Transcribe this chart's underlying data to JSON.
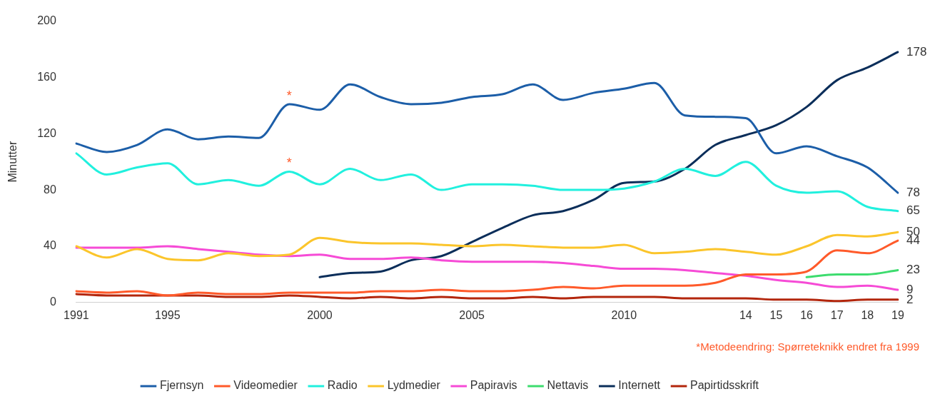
{
  "chart_data": {
    "type": "line",
    "ylabel": "Minutter",
    "ylim": [
      0,
      200
    ],
    "yticks": [
      0,
      40,
      80,
      120,
      160,
      200
    ],
    "grid": false,
    "legend": "bottom",
    "marker": "none",
    "line_style": "solid",
    "categories": [
      "1991",
      null,
      null,
      "1995",
      null,
      null,
      null,
      null,
      "2000",
      null,
      null,
      null,
      null,
      "2005",
      null,
      null,
      null,
      null,
      "2010",
      null,
      null,
      null,
      "14",
      "15",
      "16",
      "17",
      "18",
      "19"
    ],
    "annotations": [
      "*Metodeendring: Spørreteknikk endret fra 1999"
    ],
    "series": [
      {
        "name": "Fjernsyn",
        "color": "#1c5ea8",
        "values": [
          113,
          107,
          112,
          123,
          116,
          118,
          117,
          141,
          137,
          155,
          146,
          141,
          142,
          146,
          148,
          155,
          144,
          149,
          152,
          156,
          133,
          132,
          131,
          106,
          111,
          104,
          96,
          78
        ],
        "value_labels": [
          null,
          null,
          null,
          null,
          null,
          null,
          null,
          "*",
          null,
          null,
          null,
          null,
          null,
          null,
          null,
          null,
          null,
          null,
          null,
          null,
          null,
          null,
          null,
          null,
          null,
          null,
          null,
          "78"
        ]
      },
      {
        "name": "Videomedier",
        "color": "#ff5a2a",
        "values": [
          8,
          7,
          8,
          5,
          7,
          6,
          6,
          7,
          7,
          7,
          8,
          8,
          9,
          8,
          8,
          9,
          11,
          10,
          12,
          12,
          12,
          14,
          20,
          20,
          22,
          37,
          35,
          44
        ],
        "value_labels": [
          null,
          null,
          null,
          null,
          null,
          null,
          null,
          null,
          null,
          null,
          null,
          null,
          null,
          null,
          null,
          null,
          null,
          null,
          null,
          null,
          null,
          null,
          null,
          null,
          null,
          null,
          null,
          "44"
        ]
      },
      {
        "name": "Radio",
        "color": "#21f0de",
        "values": [
          106,
          91,
          96,
          99,
          84,
          87,
          83,
          93,
          84,
          95,
          87,
          91,
          80,
          84,
          84,
          83,
          80,
          80,
          81,
          86,
          95,
          90,
          100,
          83,
          78,
          79,
          68,
          65
        ],
        "value_labels": [
          null,
          null,
          null,
          null,
          null,
          null,
          null,
          "*",
          null,
          null,
          null,
          null,
          null,
          null,
          null,
          null,
          null,
          null,
          null,
          null,
          null,
          null,
          null,
          null,
          null,
          null,
          null,
          "65"
        ]
      },
      {
        "name": "Lydmedier",
        "color": "#fbc52b",
        "values": [
          40,
          32,
          38,
          31,
          30,
          35,
          33,
          34,
          46,
          43,
          42,
          42,
          41,
          40,
          41,
          40,
          39,
          39,
          41,
          35,
          36,
          38,
          36,
          34,
          40,
          48,
          47,
          50
        ],
        "value_labels": [
          null,
          null,
          null,
          null,
          null,
          null,
          null,
          null,
          null,
          null,
          null,
          null,
          null,
          null,
          null,
          null,
          null,
          null,
          null,
          null,
          null,
          null,
          null,
          null,
          null,
          null,
          null,
          "50"
        ]
      },
      {
        "name": "Papiravis",
        "color": "#f64bd6",
        "values": [
          39,
          39,
          39,
          40,
          38,
          36,
          34,
          33,
          34,
          31,
          31,
          32,
          30,
          29,
          29,
          29,
          28,
          26,
          24,
          24,
          23,
          21,
          19,
          16,
          14,
          11,
          12,
          9
        ],
        "value_labels": [
          null,
          null,
          null,
          null,
          null,
          null,
          null,
          null,
          null,
          null,
          null,
          null,
          null,
          null,
          null,
          null,
          null,
          null,
          null,
          null,
          null,
          null,
          null,
          null,
          null,
          null,
          null,
          "9"
        ]
      },
      {
        "name": "Nettavis",
        "color": "#3ddc6e",
        "values": [
          null,
          null,
          null,
          null,
          null,
          null,
          null,
          null,
          null,
          null,
          null,
          null,
          null,
          null,
          null,
          null,
          null,
          null,
          null,
          null,
          null,
          null,
          null,
          null,
          18,
          20,
          20,
          23
        ],
        "value_labels": [
          null,
          null,
          null,
          null,
          null,
          null,
          null,
          null,
          null,
          null,
          null,
          null,
          null,
          null,
          null,
          null,
          null,
          null,
          null,
          null,
          null,
          null,
          null,
          null,
          null,
          null,
          null,
          "23"
        ]
      },
      {
        "name": "Internett",
        "color": "#0b2e5a",
        "values": [
          null,
          null,
          null,
          null,
          null,
          null,
          null,
          null,
          18,
          21,
          22,
          30,
          33,
          43,
          53,
          62,
          65,
          73,
          85,
          86,
          95,
          112,
          119,
          126,
          139,
          158,
          167,
          178
        ],
        "value_labels": [
          null,
          null,
          null,
          null,
          null,
          null,
          null,
          null,
          null,
          null,
          null,
          null,
          null,
          null,
          null,
          null,
          null,
          null,
          null,
          null,
          null,
          null,
          null,
          null,
          null,
          null,
          null,
          "178"
        ]
      },
      {
        "name": "Papirtidsskrift",
        "color": "#b3260c",
        "values": [
          6,
          5,
          5,
          5,
          5,
          4,
          4,
          5,
          4,
          3,
          4,
          3,
          4,
          3,
          3,
          4,
          3,
          4,
          4,
          4,
          3,
          3,
          3,
          2,
          2,
          1,
          2,
          2
        ],
        "value_labels": [
          null,
          null,
          null,
          null,
          null,
          null,
          null,
          null,
          null,
          null,
          null,
          null,
          null,
          null,
          null,
          null,
          null,
          null,
          null,
          null,
          null,
          null,
          null,
          null,
          null,
          null,
          null,
          "2"
        ]
      }
    ]
  }
}
